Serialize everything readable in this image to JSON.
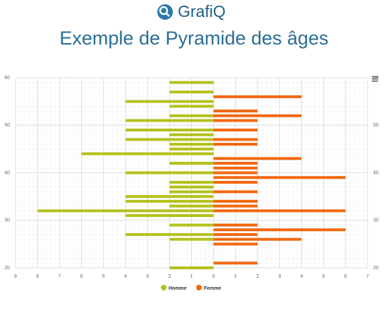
{
  "chart_data": {
    "type": "pyramid",
    "brand": "GrafiQ",
    "title": "Exemple de Pyramide des âges",
    "ages": [
      20,
      21,
      22,
      23,
      24,
      25,
      26,
      27,
      28,
      29,
      30,
      31,
      32,
      33,
      34,
      35,
      36,
      37,
      38,
      39,
      40,
      41,
      42,
      43,
      44,
      45,
      46,
      47,
      48,
      49,
      50,
      51,
      52,
      53,
      54,
      55,
      56,
      57,
      58,
      59
    ],
    "series": [
      {
        "name": "Homme",
        "color": "#b4c11b",
        "values": [
          -2,
          null,
          null,
          null,
          null,
          null,
          -2,
          -4,
          null,
          -2,
          null,
          -4,
          -8,
          -2,
          -4,
          -4,
          -2,
          -2,
          -2,
          null,
          -4,
          null,
          -2,
          null,
          -6,
          -2,
          -2,
          -4,
          -2,
          -4,
          null,
          -4,
          -2,
          null,
          -2,
          -4,
          null,
          -2,
          null,
          -2
        ]
      },
      {
        "name": "Femme",
        "color": "#f2680f",
        "values": [
          null,
          2,
          null,
          null,
          null,
          2,
          4,
          2,
          6,
          2,
          null,
          null,
          6,
          2,
          2,
          null,
          2,
          null,
          2,
          6,
          2,
          2,
          2,
          4,
          null,
          null,
          2,
          2,
          null,
          2,
          null,
          2,
          4,
          2,
          null,
          null,
          4,
          null,
          null,
          null
        ]
      }
    ],
    "ylim": [
      20,
      60
    ],
    "yticks": [
      20,
      30,
      40,
      50,
      60
    ],
    "xlim": [
      -9,
      7
    ],
    "xticks": [
      {
        "value": -9,
        "label": "9"
      },
      {
        "value": -8,
        "label": "8"
      },
      {
        "value": -7,
        "label": "7"
      },
      {
        "value": -6,
        "label": "6"
      },
      {
        "value": -5,
        "label": "5"
      },
      {
        "value": -4,
        "label": "4"
      },
      {
        "value": -3,
        "label": "3"
      },
      {
        "value": -2,
        "label": "2"
      },
      {
        "value": -1,
        "label": "1"
      },
      0,
      1,
      2,
      3,
      4,
      5,
      6,
      7
    ],
    "grid": true
  }
}
